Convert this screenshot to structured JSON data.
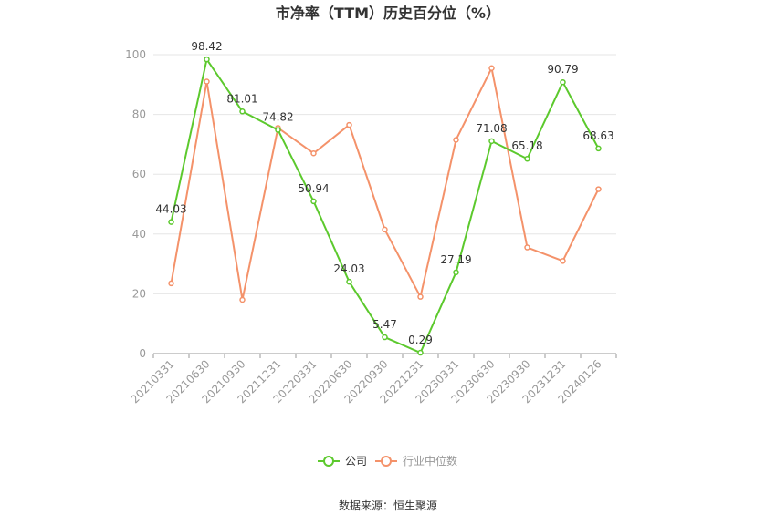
{
  "chart_data": {
    "type": "line",
    "title": "市净率（TTM）历史百分位（%）",
    "categories": [
      "20210331",
      "20210630",
      "20210930",
      "20211231",
      "20220331",
      "20220630",
      "20220930",
      "20221231",
      "20230331",
      "20230630",
      "20230930",
      "20231231",
      "20240126"
    ],
    "ylim": [
      0,
      100
    ],
    "yticks": [
      0,
      20,
      40,
      60,
      80,
      100
    ],
    "grid": true,
    "legend_position": "bottom",
    "series": [
      {
        "name": "公司",
        "color": "#5cc92d",
        "values": [
          44.03,
          98.42,
          81.01,
          74.82,
          50.94,
          24.03,
          5.47,
          0.29,
          27.19,
          71.08,
          65.18,
          90.79,
          68.63
        ],
        "labels": [
          "44.03",
          "98.42",
          "81.01",
          "74.82",
          "50.94",
          "24.03",
          "5.47",
          "0.29",
          "27.19",
          "71.08",
          "65.18",
          "90.79",
          "68.63"
        ]
      },
      {
        "name": "行业中位数",
        "color": "#f4926a",
        "values": [
          23.5,
          91,
          18,
          75.5,
          67,
          76.5,
          41.5,
          19,
          71.5,
          95.5,
          35.5,
          31,
          55
        ]
      }
    ]
  },
  "footer": {
    "source": "数据来源：恒生聚源"
  }
}
